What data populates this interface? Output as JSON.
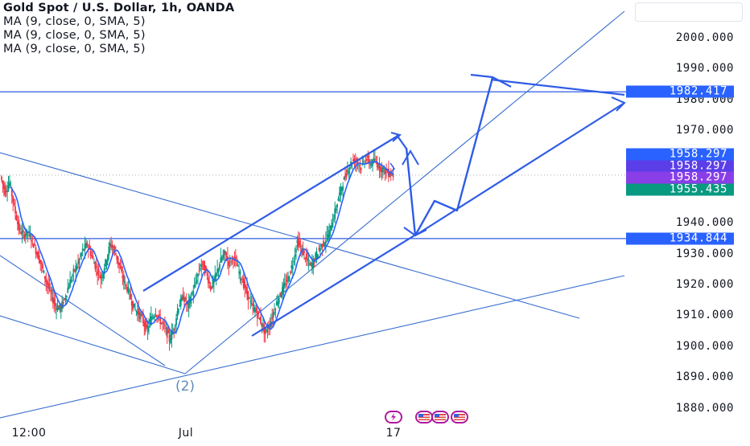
{
  "legend": {
    "symbol": "Gold Spot / U.S. Dollar, 1h, OANDA",
    "ma_lines": [
      "MA (9, close, 0, SMA, 5)",
      "MA (9, close, 0, SMA, 5)",
      "MA (9, close, 0, SMA, 5)"
    ]
  },
  "annotation": {
    "wave_label": "(2)"
  },
  "colors": {
    "drawing": "#2f5ce6",
    "thin_drawing": "#3a6fd1",
    "candle_up": "#089981",
    "candle_down": "#f23645",
    "ma": "#2962ff",
    "level_badge": "#2962ff",
    "alert_badge": "#7b3fe4",
    "last_price_badge": "#089981",
    "event_icon": "#b0179e"
  },
  "chart_data": {
    "type": "candlestick",
    "instrument": "Gold Spot / U.S. Dollar",
    "timeframe": "1h",
    "source": "OANDA",
    "ylim": [
      1876,
      2009
    ],
    "y_ticks": [
      1880,
      1890,
      1900,
      1910,
      1920,
      1930,
      1940,
      1950,
      1960,
      1970,
      1980,
      1990,
      2000
    ],
    "y_tick_labels": [
      "1880.000",
      "1890.000",
      "1900.000",
      "1910.000",
      "1920.000",
      "1930.000",
      "1940.000",
      "1950.000",
      "1960.000",
      "1970.000",
      "1980.000",
      "1990.000",
      "2000.000"
    ],
    "x_labels": [
      "12:00",
      "Jul",
      "17"
    ],
    "price_badges": [
      {
        "label": "1982.417",
        "value": 1982.417,
        "kind": "level"
      },
      {
        "label": "1958.297",
        "value": 1958.297,
        "kind": "alert-blue"
      },
      {
        "label": "1958.297",
        "value": 1958.297,
        "kind": "alert-indigo"
      },
      {
        "label": "1958.297",
        "value": 1958.297,
        "kind": "alert-purple"
      },
      {
        "label": "1955.435",
        "value": 1955.435,
        "kind": "last-price"
      },
      {
        "label": "1934.844",
        "value": 1934.844,
        "kind": "level"
      }
    ],
    "horizontal_levels": [
      1982.417,
      1934.844
    ],
    "price_path": [
      1955,
      1950,
      1953,
      1945,
      1938,
      1936,
      1937,
      1934,
      1930,
      1926,
      1921,
      1917,
      1913,
      1912,
      1915,
      1920,
      1924,
      1927,
      1931,
      1933,
      1929,
      1925,
      1922,
      1927,
      1933,
      1931,
      1926,
      1921,
      1918,
      1913,
      1911,
      1909,
      1905,
      1909,
      1911,
      1908,
      1906,
      1902,
      1906,
      1913,
      1916,
      1913,
      1917,
      1922,
      1927,
      1924,
      1919,
      1922,
      1927,
      1930,
      1927,
      1929,
      1925,
      1921,
      1917,
      1913,
      1911,
      1908,
      1904,
      1907,
      1912,
      1916,
      1919,
      1922,
      1927,
      1934,
      1931,
      1928,
      1926,
      1929,
      1932,
      1934,
      1937,
      1942,
      1948,
      1953,
      1957,
      1960,
      1960,
      1958,
      1961,
      1959,
      1960,
      1958,
      1957,
      1956,
      1955.435
    ],
    "price_path_x_range": [
      "12:00 (Jun 29)",
      "Jul 17"
    ]
  }
}
